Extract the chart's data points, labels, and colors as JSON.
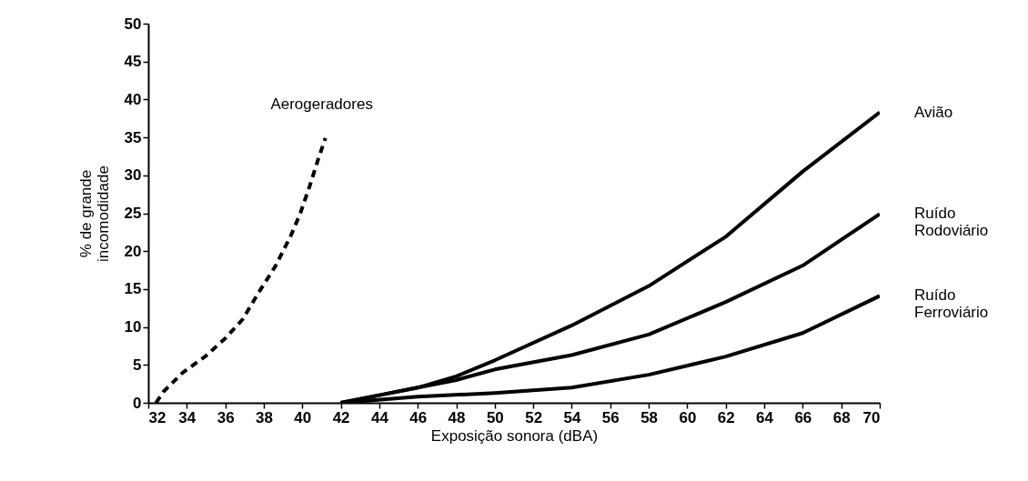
{
  "chart_data": {
    "type": "line",
    "xlabel": "Exposição sonora (dBA)",
    "ylabel": "% de grande\nincomodidade",
    "xlim": [
      32,
      70
    ],
    "xticks": [
      32,
      34,
      36,
      38,
      40,
      42,
      44,
      46,
      48,
      50,
      52,
      54,
      56,
      58,
      60,
      62,
      64,
      66,
      68,
      70
    ],
    "ylim": [
      0,
      50
    ],
    "yticks": [
      0,
      5,
      10,
      15,
      20,
      25,
      30,
      35,
      40,
      45,
      50
    ],
    "grid": false,
    "legend": false,
    "series": [
      {
        "name": "Aerogeradores",
        "color": "#000000",
        "line_style": "dashed",
        "x": [
          32.4,
          32.8,
          33.8,
          35,
          36,
          36.9,
          37.7,
          38.6,
          39.4,
          39.9,
          40.4,
          40.8,
          41.2
        ],
        "values": [
          0,
          1.5,
          4,
          6.2,
          8.5,
          11,
          14.4,
          18,
          22,
          25,
          28.7,
          31.9,
          34.9
        ]
      },
      {
        "name": "Avião",
        "color": "#000000",
        "line_style": "solid",
        "x": [
          42,
          44,
          46,
          48,
          50,
          54,
          58,
          62,
          66,
          70
        ],
        "values": [
          0,
          1,
          2,
          3.5,
          5.6,
          10.2,
          15.4,
          21.9,
          30.5,
          38.3
        ]
      },
      {
        "name": "Ruído Rodoviário",
        "color": "#000000",
        "line_style": "solid",
        "x": [
          42,
          44,
          46,
          48,
          50,
          54,
          58,
          62,
          66,
          70
        ],
        "values": [
          0,
          1,
          2,
          3,
          4.4,
          6.3,
          9,
          13.3,
          18.1,
          24.9
        ]
      },
      {
        "name": "Ruído Ferroviário",
        "color": "#000000",
        "line_style": "solid",
        "x": [
          42,
          46,
          50,
          54,
          58,
          62,
          66,
          70
        ],
        "values": [
          0,
          0.8,
          1.3,
          2,
          3.7,
          6.1,
          9.2,
          14.1
        ]
      }
    ]
  }
}
